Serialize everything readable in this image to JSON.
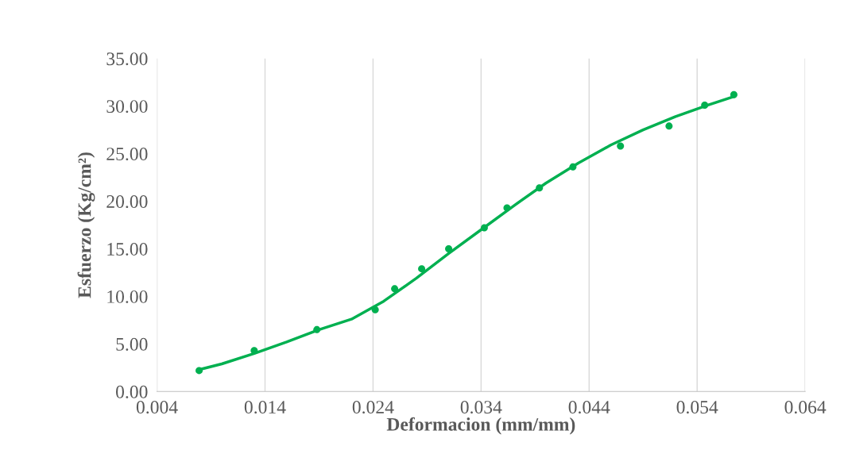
{
  "chart_data": {
    "type": "scatter",
    "xlabel": "Deformacion (mm/mm)",
    "ylabel": "Esfuerzo (Kg/cm²)",
    "series": [
      {
        "color": "#00b050",
        "marker": "circle",
        "x": [
          0.0079,
          0.013,
          0.0188,
          0.0242,
          0.026,
          0.0285,
          0.031,
          0.0343,
          0.0364,
          0.0394,
          0.0425,
          0.0469,
          0.0514,
          0.0547,
          0.0574
        ],
        "values": [
          2.2,
          4.3,
          6.5,
          8.6,
          10.8,
          12.9,
          15.0,
          17.2,
          19.3,
          21.4,
          23.6,
          25.8,
          27.9,
          30.1,
          31.2
        ]
      },
      {
        "type": "line",
        "color": "#00b050",
        "marker": "none",
        "line_style": "solid",
        "x": [
          0.0079,
          0.01,
          0.013,
          0.016,
          0.019,
          0.022,
          0.025,
          0.028,
          0.031,
          0.034,
          0.037,
          0.04,
          0.043,
          0.046,
          0.049,
          0.052,
          0.055,
          0.0574
        ],
        "values": [
          2.3,
          2.9,
          4.0,
          5.2,
          6.5,
          7.6,
          9.5,
          11.9,
          14.5,
          17.0,
          19.5,
          21.9,
          24.0,
          25.9,
          27.5,
          28.9,
          30.1,
          31.0
        ]
      }
    ],
    "xlim": [
      0.004,
      0.064
    ],
    "xticks": [
      0.004,
      0.014,
      0.024,
      0.034,
      0.044,
      0.054,
      0.064
    ],
    "ylim": [
      0,
      35
    ],
    "yticks": [
      {
        "value": 0,
        "label": "0.00"
      },
      {
        "value": 5,
        "label": "5.00"
      },
      {
        "value": 10,
        "label": "10.00"
      },
      {
        "value": 15,
        "label": "15.00"
      },
      {
        "value": 20,
        "label": "20.00"
      },
      {
        "value": 25,
        "label": "25.00"
      },
      {
        "value": 30,
        "label": "30.00"
      },
      {
        "value": 35,
        "label": "35.00"
      }
    ],
    "grid": "x",
    "legend": false
  }
}
